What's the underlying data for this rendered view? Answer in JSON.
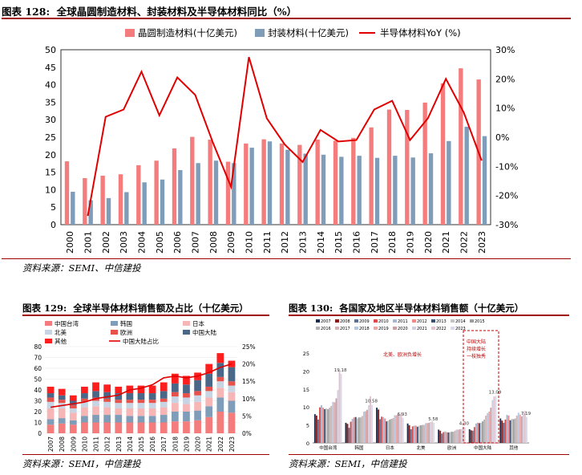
{
  "figures": {
    "fig128": {
      "label": "图表 128:",
      "title": "全球晶圆制造材料、封装材料及半导体材料同比（%）",
      "source": "资料来源：SEMI、中信建投"
    },
    "fig129": {
      "label": "图表 129:",
      "title": "全球半导体材料销售额及占比（十亿美元）",
      "source": "资料来源：SEMI，中信建投"
    },
    "fig130": {
      "label": "图表 130:",
      "title": "各国家及地区半导体材料销售额（十亿美元）",
      "source": "资料来源：SEMI，中信建投"
    }
  },
  "chart_data": [
    {
      "id": "fig128",
      "type": "bar",
      "title": "全球晶圆制造材料、封装材料及半导体材料同比（%）",
      "categories": [
        "2000",
        "2001",
        "2002",
        "2003",
        "2004",
        "2005",
        "2006",
        "2007",
        "2008",
        "2009",
        "2010",
        "2011",
        "2012",
        "2013",
        "2014",
        "2015",
        "2016",
        "2017",
        "2018",
        "2019",
        "2020",
        "2021",
        "2022",
        "2023"
      ],
      "series": [
        {
          "name": "晶圆制造材料(十亿美元)",
          "kind": "bar",
          "axis": "left",
          "color": "#f47c7c",
          "values": [
            18.1,
            13.3,
            14.0,
            14.4,
            17.0,
            18.3,
            21.8,
            25.1,
            24.3,
            18.0,
            23.2,
            24.4,
            23.2,
            22.8,
            24.3,
            24.0,
            24.8,
            27.8,
            32.9,
            32.8,
            34.9,
            40.4,
            44.7,
            41.5
          ]
        },
        {
          "name": "封装材料(十亿美元)",
          "kind": "bar",
          "axis": "left",
          "color": "#7f9db9",
          "values": [
            9.4,
            7.0,
            7.6,
            9.3,
            12.1,
            12.9,
            15.6,
            17.6,
            18.3,
            17.6,
            22.0,
            23.8,
            21.4,
            20.3,
            20.0,
            19.4,
            19.7,
            19.1,
            19.7,
            19.2,
            20.4,
            23.9,
            28.0,
            25.3
          ]
        },
        {
          "name": "半导体材料YoY (%)",
          "kind": "line",
          "axis": "right",
          "color": "#e00000",
          "values": [
            null,
            -27.0,
            7.0,
            9.5,
            22.5,
            7.5,
            20.5,
            14.5,
            -2.0,
            -17.0,
            27.5,
            6.5,
            -2.5,
            -8.5,
            2.5,
            -1.5,
            -1.0,
            9.5,
            12.5,
            -1.0,
            6.5,
            20.0,
            8.5,
            -8.0
          ]
        }
      ],
      "ylim": [
        0,
        50
      ],
      "yticks": [
        0,
        5,
        10,
        15,
        20,
        25,
        30,
        35,
        40,
        45,
        50
      ],
      "y2lim": [
        -30,
        30
      ],
      "y2ticks": [
        "-30%",
        "-20%",
        "-10%",
        "0%",
        "10%",
        "20%",
        "30%"
      ],
      "legend": "top"
    },
    {
      "id": "fig129",
      "type": "bar",
      "stacked": true,
      "title": "全球半导体材料销售额及占比（十亿美元）",
      "categories": [
        "2007",
        "2008",
        "2009",
        "2010",
        "2011",
        "2012",
        "2013",
        "2014",
        "2015",
        "2016",
        "2017",
        "2018",
        "2019",
        "2020",
        "2021",
        "2022",
        "2023"
      ],
      "series": [
        {
          "name": "中国台湾",
          "kind": "bar",
          "color": "#f47c7c",
          "values": [
            8,
            9,
            8,
            10,
            10,
            10,
            10,
            10,
            10,
            10,
            10,
            11,
            11,
            12,
            15,
            20,
            19
          ]
        },
        {
          "name": "韩国",
          "kind": "bar",
          "color": "#7f9db9",
          "values": [
            5,
            5,
            4,
            6,
            7,
            7,
            7,
            6,
            6,
            6,
            7,
            9,
            9,
            9,
            10,
            13,
            11
          ]
        },
        {
          "name": "日本",
          "kind": "bar",
          "color": "#f7b6b6",
          "values": [
            10,
            9,
            7,
            8,
            8,
            7,
            6,
            7,
            7,
            7,
            7,
            8,
            7,
            8,
            8,
            9,
            8
          ]
        },
        {
          "name": "北美",
          "kind": "bar",
          "color": "#c6d4e3",
          "values": [
            6,
            5,
            4,
            5,
            5,
            5,
            5,
            5,
            5,
            5,
            5,
            6,
            6,
            6,
            6,
            6,
            6
          ]
        },
        {
          "name": "欧洲",
          "kind": "bar",
          "color": "#e8504a",
          "values": [
            4,
            3,
            3,
            3,
            3,
            3,
            3,
            3,
            3,
            3,
            3,
            4,
            4,
            4,
            4,
            4,
            4
          ]
        },
        {
          "name": "中国大陆",
          "kind": "bar",
          "color": "#4a6787",
          "values": [
            4,
            4,
            4,
            5,
            6,
            6,
            6,
            6,
            6,
            6,
            7,
            8,
            8,
            10,
            12,
            13,
            13
          ]
        },
        {
          "name": "其他",
          "kind": "bar",
          "color": "#ff1e1e",
          "values": [
            6,
            6,
            5,
            6,
            8,
            7,
            6,
            7,
            7,
            7,
            8,
            9,
            8,
            7,
            9,
            9,
            6
          ]
        },
        {
          "name": "中国大陆占比",
          "kind": "line",
          "axis": "right",
          "color": "#e00000",
          "values": [
            7.5,
            8.0,
            8.5,
            9.0,
            10.0,
            10.5,
            11.0,
            12.5,
            13.0,
            14.0,
            16.0,
            16.5,
            16.0,
            16.5,
            17.5,
            19.0,
            20.0
          ]
        }
      ],
      "ylim": [
        0,
        80
      ],
      "yticks": [
        0,
        10,
        20,
        30,
        40,
        50,
        60,
        70,
        80
      ],
      "y2lim": [
        0,
        25
      ],
      "y2ticks": [
        "0%",
        "5%",
        "10%",
        "15%",
        "20%",
        "25%"
      ],
      "legend": "top"
    },
    {
      "id": "fig130",
      "type": "bar",
      "title": "各国家及地区半导体材料销售额（十亿美元）",
      "legend_labels": [
        "2007",
        "2008",
        "2009",
        "2010",
        "2011",
        "2012",
        "2013",
        "2014",
        "2015",
        "2016",
        "2017",
        "2018",
        "2019",
        "2020",
        "2021",
        "2022",
        "2023"
      ],
      "categories": [
        "中国台湾",
        "韩国",
        "日本",
        "北美",
        "欧洲",
        "中国大陆",
        "其他"
      ],
      "series_values": [
        [
          8.0,
          7.6,
          6.5,
          9.9,
          10.5,
          9.8,
          9.4,
          9.6,
          9.4,
          9.8,
          10.3,
          11.4,
          11.3,
          12.4,
          14.7,
          20.1,
          19.18
        ],
        [
          5.6,
          5.3,
          4.2,
          5.9,
          6.7,
          7.1,
          7.2,
          6.8,
          7.1,
          7.1,
          7.5,
          8.7,
          8.8,
          9.2,
          10.5,
          13.0,
          10.58
        ],
        [
          9.8,
          9.3,
          6.6,
          7.3,
          7.2,
          6.8,
          6.0,
          6.2,
          6.5,
          6.7,
          6.9,
          7.7,
          7.7,
          7.9,
          8.0,
          8.5,
          6.93
        ],
        [
          5.4,
          4.9,
          3.8,
          4.6,
          4.8,
          4.8,
          4.5,
          4.8,
          4.9,
          5.0,
          5.0,
          5.5,
          5.5,
          5.6,
          5.8,
          6.0,
          5.58
        ],
        [
          3.7,
          3.4,
          2.6,
          3.0,
          3.2,
          3.0,
          2.9,
          3.0,
          3.1,
          3.1,
          3.4,
          3.7,
          3.7,
          3.8,
          3.9,
          4.1,
          4.3
        ],
        [
          3.8,
          3.5,
          3.4,
          4.4,
          5.4,
          5.6,
          5.5,
          5.6,
          6.0,
          6.5,
          7.6,
          8.3,
          8.7,
          9.8,
          11.9,
          12.9,
          13.09
        ],
        [
          6.8,
          6.2,
          5.6,
          6.5,
          7.8,
          7.6,
          6.3,
          6.7,
          6.6,
          6.8,
          7.6,
          8.4,
          7.9,
          7.4,
          8.4,
          8.9,
          7.19
        ]
      ],
      "ylim": [
        0,
        25
      ],
      "yticks": [
        0,
        5,
        10,
        15,
        20,
        25
      ],
      "annotations": [
        "北美、欧洲负增长",
        "中国大陆\n持续增长\n一枝独秀"
      ],
      "data_labels": [
        "19.18",
        "10.58",
        "6.93",
        "5.58",
        "4.30",
        "13.09",
        "7.19"
      ]
    }
  ]
}
